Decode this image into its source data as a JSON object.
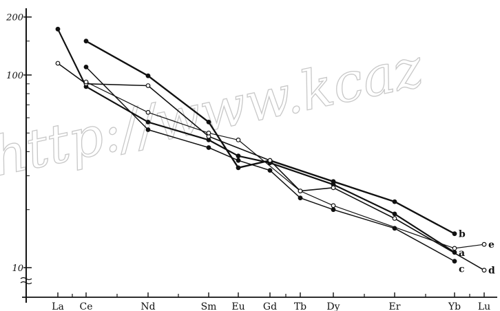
{
  "watermark": "http://www.kcaz",
  "chart_data": {
    "type": "line",
    "title": "",
    "xlabel": "",
    "ylabel": "",
    "y_scale": "log",
    "ylim": [
      8.5,
      220
    ],
    "yticks": [
      10,
      100,
      200
    ],
    "ytick_labels": [
      "10",
      "100",
      "200"
    ],
    "categories": [
      "La",
      "Ce",
      "Nd",
      "Sm",
      "Eu",
      "Gd",
      "Tb",
      "Dy",
      "Er",
      "Yb",
      "Lu"
    ],
    "grid": false,
    "legend": "none",
    "series": [
      {
        "name": "a",
        "marker": "filled",
        "points": [
          [
            "La",
            173
          ],
          [
            "Ce",
            87
          ],
          [
            "Nd",
            57
          ],
          [
            "Sm",
            46
          ],
          [
            "Eu",
            38
          ],
          [
            "Gd",
            35
          ],
          [
            "Dy",
            27
          ],
          [
            "Er",
            19
          ],
          [
            "Yb",
            12
          ]
        ]
      },
      {
        "name": "b",
        "marker": "filled",
        "points": [
          [
            "Ce",
            150
          ],
          [
            "Nd",
            99
          ],
          [
            "Sm",
            57
          ],
          [
            "Eu",
            33
          ],
          [
            "Gd",
            36
          ],
          [
            "Dy",
            28
          ],
          [
            "Er",
            22
          ],
          [
            "Yb",
            15
          ]
        ]
      },
      {
        "name": "c",
        "marker": "filled",
        "points": [
          [
            "Ce",
            110
          ],
          [
            "Nd",
            52
          ],
          [
            "Sm",
            42
          ],
          [
            "Eu",
            36
          ],
          [
            "Gd",
            32
          ],
          [
            "Tb",
            23
          ],
          [
            "Dy",
            20
          ],
          [
            "Er",
            16
          ],
          [
            "Yb",
            10.8
          ]
        ]
      },
      {
        "name": "d",
        "marker": "open",
        "points": [
          [
            "La",
            115
          ],
          [
            "Ce",
            90
          ],
          [
            "Nd",
            88
          ],
          [
            "Sm",
            48
          ],
          [
            "Gd",
            36
          ],
          [
            "Tb",
            25
          ],
          [
            "Dy",
            26
          ],
          [
            "Er",
            18
          ],
          [
            "Lu",
            9.7
          ]
        ]
      },
      {
        "name": "e",
        "marker": "open",
        "points": [
          [
            "Ce",
            92
          ],
          [
            "Nd",
            64
          ],
          [
            "Sm",
            50
          ],
          [
            "Eu",
            46
          ],
          [
            "Tb",
            25
          ],
          [
            "Dy",
            21
          ],
          [
            "Yb",
            12.6
          ],
          [
            "Lu",
            13.2
          ]
        ]
      }
    ],
    "annotations": [
      "a",
      "b",
      "c",
      "d",
      "e"
    ]
  }
}
